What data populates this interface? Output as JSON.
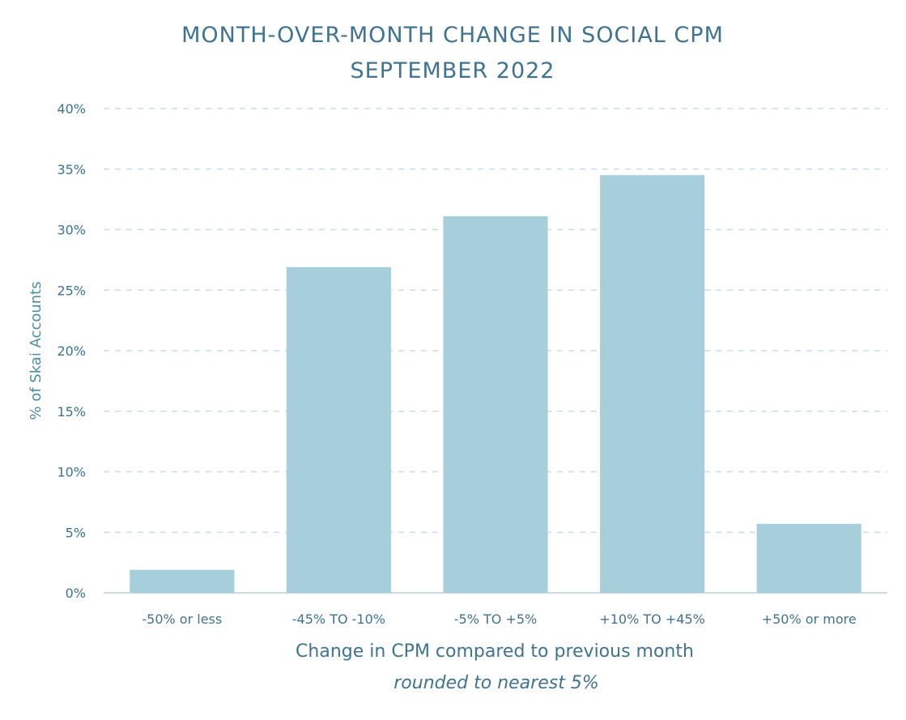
{
  "chart_data": {
    "type": "bar",
    "title": "MONTH-OVER-MONTH CHANGE IN SOCIAL CPM",
    "subtitle": "SEPTEMBER 2022",
    "xlabel": "Change in CPM compared to previous month",
    "xlabel_sub": "rounded to nearest 5%",
    "ylabel": "% of Skai Accounts",
    "categories": [
      "-50% or less",
      "-45% TO -10%",
      "-5% TO +5%",
      "+10% TO +45%",
      "+50% or more"
    ],
    "values": [
      1.9,
      26.9,
      31.1,
      34.5,
      5.7
    ],
    "ylim": [
      0,
      40
    ],
    "yticks": [
      0,
      5,
      10,
      15,
      20,
      25,
      30,
      35,
      40
    ],
    "ytick_labels": [
      "0%",
      "5%",
      "10%",
      "15%",
      "20%",
      "25%",
      "30%",
      "35%",
      "40%"
    ],
    "grid": true,
    "legend": "none",
    "colors": {
      "bar": "#a6cfdb",
      "text": "#3f7390",
      "grid": "#c8dde5",
      "axis": "#b9cfd8"
    }
  }
}
